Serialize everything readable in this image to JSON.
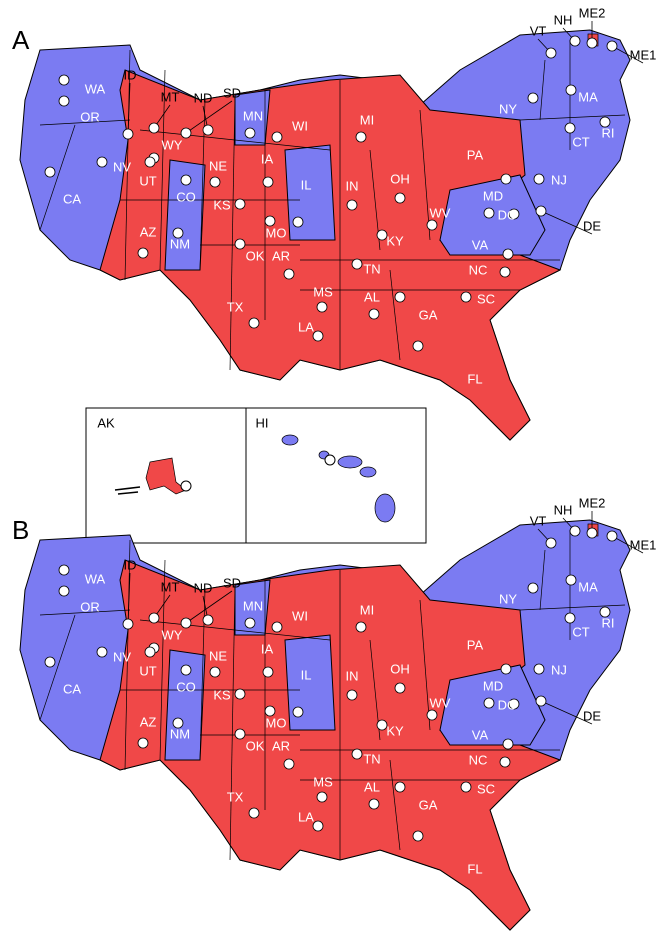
{
  "panels": [
    {
      "label": "A",
      "states": [
        {
          "label": "WA",
          "color": "#7b7bf2"
        },
        {
          "label": "OR",
          "color": "#7b7bf2"
        },
        {
          "label": "CA",
          "color": "#7b7bf2"
        },
        {
          "label": "NV",
          "color": "#7b7bf2"
        },
        {
          "label": "ID",
          "color": "#f04848"
        },
        {
          "label": "MT",
          "color": "#f04848"
        },
        {
          "label": "WY",
          "color": "#f04848"
        },
        {
          "label": "UT",
          "color": "#f04848"
        },
        {
          "label": "ND",
          "color": "#f04848"
        },
        {
          "label": "SD",
          "color": "#f04848"
        },
        {
          "label": "CO",
          "color": "#7b7bf2"
        },
        {
          "label": "AZ",
          "color": "#f04848"
        },
        {
          "label": "NM",
          "color": "#7b7bf2"
        },
        {
          "label": "NE",
          "color": "#f04848"
        },
        {
          "label": "KS",
          "color": "#f04848"
        },
        {
          "label": "MN",
          "color": "#7b7bf2"
        },
        {
          "label": "IA",
          "color": "#f04848"
        },
        {
          "label": "MO",
          "color": "#f04848"
        },
        {
          "label": "OK",
          "color": "#f04848"
        },
        {
          "label": "AR",
          "color": "#f04848"
        },
        {
          "label": "TX",
          "color": "#f04848"
        },
        {
          "label": "LA",
          "color": "#f04848"
        },
        {
          "label": "MS",
          "color": "#f04848"
        },
        {
          "label": "WI",
          "color": "#f04848"
        },
        {
          "label": "IL",
          "color": "#7b7bf2"
        },
        {
          "label": "MI",
          "color": "#f04848"
        },
        {
          "label": "IN",
          "color": "#f04848"
        },
        {
          "label": "OH",
          "color": "#f04848"
        },
        {
          "label": "KY",
          "color": "#f04848"
        },
        {
          "label": "TN",
          "color": "#f04848"
        },
        {
          "label": "AL",
          "color": "#f04848"
        },
        {
          "label": "GA",
          "color": "#f04848"
        },
        {
          "label": "FL",
          "color": "#f04848"
        },
        {
          "label": "SC",
          "color": "#f04848"
        },
        {
          "label": "NC",
          "color": "#f04848"
        },
        {
          "label": "VA",
          "color": "#7b7bf2"
        },
        {
          "label": "WV",
          "color": "#f04848"
        },
        {
          "label": "PA",
          "color": "#f04848"
        },
        {
          "label": "NJ",
          "color": "#7b7bf2"
        },
        {
          "label": "MD",
          "color": "#7b7bf2"
        },
        {
          "label": "DC",
          "color": "#7b7bf2"
        },
        {
          "label": "DE",
          "color": "#7b7bf2"
        },
        {
          "label": "NY",
          "color": "#7b7bf2"
        },
        {
          "label": "CT",
          "color": "#7b7bf2"
        },
        {
          "label": "RI",
          "color": "#7b7bf2"
        },
        {
          "label": "MA",
          "color": "#7b7bf2"
        },
        {
          "label": "VT",
          "color": "#7b7bf2"
        },
        {
          "label": "NH",
          "color": "#7b7bf2"
        },
        {
          "label": "ME2",
          "color": "#f04848"
        },
        {
          "label": "ME1",
          "color": "#7b7bf2"
        }
      ],
      "insets": [
        {
          "label": "AK",
          "color": "#f04848"
        },
        {
          "label": "HI",
          "color": "#7b7bf2"
        }
      ]
    },
    {
      "label": "B",
      "states": [
        {
          "label": "WA",
          "color": "#7b7bf2"
        },
        {
          "label": "OR",
          "color": "#7b7bf2"
        },
        {
          "label": "CA",
          "color": "#7b7bf2"
        },
        {
          "label": "NV",
          "color": "#7b7bf2"
        },
        {
          "label": "ID",
          "color": "#f04848"
        },
        {
          "label": "MT",
          "color": "#f04848"
        },
        {
          "label": "WY",
          "color": "#f04848"
        },
        {
          "label": "UT",
          "color": "#f04848"
        },
        {
          "label": "ND",
          "color": "#f04848"
        },
        {
          "label": "SD",
          "color": "#f04848"
        },
        {
          "label": "CO",
          "color": "#7b7bf2"
        },
        {
          "label": "AZ",
          "color": "#f04848"
        },
        {
          "label": "NM",
          "color": "#7b7bf2"
        },
        {
          "label": "NE",
          "color": "#f04848"
        },
        {
          "label": "KS",
          "color": "#f04848"
        },
        {
          "label": "MN",
          "color": "#7b7bf2"
        },
        {
          "label": "IA",
          "color": "#f04848"
        },
        {
          "label": "MO",
          "color": "#f04848"
        },
        {
          "label": "OK",
          "color": "#f04848"
        },
        {
          "label": "AR",
          "color": "#f04848"
        },
        {
          "label": "TX",
          "color": "#f04848"
        },
        {
          "label": "LA",
          "color": "#f04848"
        },
        {
          "label": "MS",
          "color": "#f04848"
        },
        {
          "label": "WI",
          "color": "#f04848"
        },
        {
          "label": "IL",
          "color": "#7b7bf2"
        },
        {
          "label": "MI",
          "color": "#f04848"
        },
        {
          "label": "IN",
          "color": "#f04848"
        },
        {
          "label": "OH",
          "color": "#f04848"
        },
        {
          "label": "KY",
          "color": "#f04848"
        },
        {
          "label": "TN",
          "color": "#f04848"
        },
        {
          "label": "AL",
          "color": "#f04848"
        },
        {
          "label": "GA",
          "color": "#f04848"
        },
        {
          "label": "FL",
          "color": "#f04848"
        },
        {
          "label": "SC",
          "color": "#f04848"
        },
        {
          "label": "NC",
          "color": "#f04848"
        },
        {
          "label": "VA",
          "color": "#7b7bf2"
        },
        {
          "label": "WV",
          "color": "#f04848"
        },
        {
          "label": "PA",
          "color": "#f04848"
        },
        {
          "label": "NJ",
          "color": "#7b7bf2"
        },
        {
          "label": "MD",
          "color": "#7b7bf2"
        },
        {
          "label": "DC",
          "color": "#7b7bf2"
        },
        {
          "label": "DE",
          "color": "#7b7bf2"
        },
        {
          "label": "NY",
          "color": "#7b7bf2"
        },
        {
          "label": "CT",
          "color": "#7b7bf2"
        },
        {
          "label": "RI",
          "color": "#7b7bf2"
        },
        {
          "label": "MA",
          "color": "#7b7bf2"
        },
        {
          "label": "VT",
          "color": "#7b7bf2"
        },
        {
          "label": "NH",
          "color": "#7b7bf2"
        },
        {
          "label": "ME2",
          "color": "#f04848"
        },
        {
          "label": "ME1",
          "color": "#7b7bf2"
        }
      ]
    }
  ]
}
